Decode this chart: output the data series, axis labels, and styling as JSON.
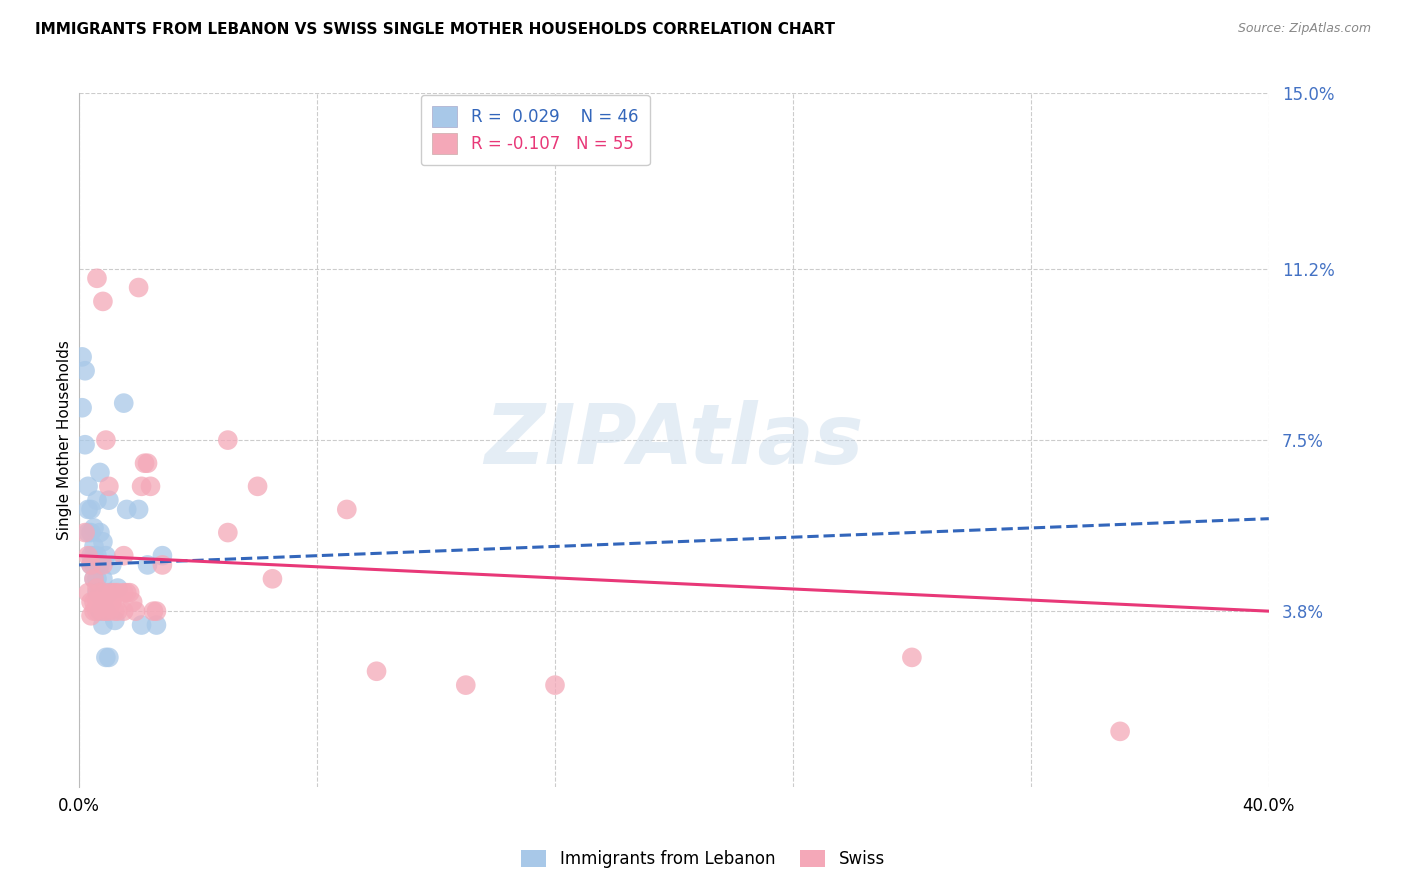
{
  "title": "IMMIGRANTS FROM LEBANON VS SWISS SINGLE MOTHER HOUSEHOLDS CORRELATION CHART",
  "source": "Source: ZipAtlas.com",
  "ylabel": "Single Mother Households",
  "xlim": [
    0.0,
    0.4
  ],
  "ylim": [
    0.0,
    0.15
  ],
  "xtick_positions": [
    0.0,
    0.08,
    0.16,
    0.24,
    0.32,
    0.4
  ],
  "xtick_labels": [
    "0.0%",
    "",
    "",
    "",
    "",
    "40.0%"
  ],
  "ytick_vals": [
    0.15,
    0.112,
    0.075,
    0.038
  ],
  "ytick_labels": [
    "15.0%",
    "11.2%",
    "7.5%",
    "3.8%"
  ],
  "grid_color": "#cccccc",
  "background_color": "#ffffff",
  "lebanon_color": "#a8c8e8",
  "swiss_color": "#f4a8b8",
  "lebanon_line_color": "#3366bb",
  "swiss_line_color": "#e83878",
  "R_lebanon": 0.029,
  "N_lebanon": 46,
  "R_swiss": -0.107,
  "N_swiss": 55,
  "watermark": "ZIPAtlas",
  "lebanon_trend": [
    0.048,
    0.058
  ],
  "swiss_trend": [
    0.05,
    0.038
  ],
  "legend_lebanon_label": "Immigrants from Lebanon",
  "legend_swiss_label": "Swiss",
  "lebanon_points": [
    [
      0.001,
      0.093
    ],
    [
      0.001,
      0.082
    ],
    [
      0.002,
      0.09
    ],
    [
      0.002,
      0.074
    ],
    [
      0.003,
      0.065
    ],
    [
      0.003,
      0.06
    ],
    [
      0.003,
      0.055
    ],
    [
      0.004,
      0.06
    ],
    [
      0.004,
      0.055
    ],
    [
      0.004,
      0.05
    ],
    [
      0.004,
      0.048
    ],
    [
      0.005,
      0.056
    ],
    [
      0.005,
      0.052
    ],
    [
      0.005,
      0.048
    ],
    [
      0.005,
      0.045
    ],
    [
      0.005,
      0.05
    ],
    [
      0.006,
      0.062
    ],
    [
      0.006,
      0.05
    ],
    [
      0.006,
      0.048
    ],
    [
      0.006,
      0.045
    ],
    [
      0.006,
      0.042
    ],
    [
      0.007,
      0.068
    ],
    [
      0.007,
      0.055
    ],
    [
      0.007,
      0.048
    ],
    [
      0.007,
      0.042
    ],
    [
      0.007,
      0.038
    ],
    [
      0.008,
      0.053
    ],
    [
      0.008,
      0.045
    ],
    [
      0.008,
      0.04
    ],
    [
      0.008,
      0.035
    ],
    [
      0.009,
      0.05
    ],
    [
      0.009,
      0.038
    ],
    [
      0.009,
      0.028
    ],
    [
      0.01,
      0.062
    ],
    [
      0.01,
      0.042
    ],
    [
      0.01,
      0.028
    ],
    [
      0.011,
      0.048
    ],
    [
      0.012,
      0.036
    ],
    [
      0.013,
      0.043
    ],
    [
      0.015,
      0.083
    ],
    [
      0.016,
      0.06
    ],
    [
      0.02,
      0.06
    ],
    [
      0.021,
      0.035
    ],
    [
      0.023,
      0.048
    ],
    [
      0.026,
      0.035
    ],
    [
      0.028,
      0.05
    ]
  ],
  "swiss_points": [
    [
      0.002,
      0.055
    ],
    [
      0.003,
      0.05
    ],
    [
      0.003,
      0.042
    ],
    [
      0.004,
      0.048
    ],
    [
      0.004,
      0.04
    ],
    [
      0.004,
      0.037
    ],
    [
      0.005,
      0.045
    ],
    [
      0.005,
      0.04
    ],
    [
      0.005,
      0.038
    ],
    [
      0.006,
      0.11
    ],
    [
      0.006,
      0.043
    ],
    [
      0.006,
      0.04
    ],
    [
      0.006,
      0.038
    ],
    [
      0.007,
      0.042
    ],
    [
      0.007,
      0.04
    ],
    [
      0.008,
      0.105
    ],
    [
      0.008,
      0.048
    ],
    [
      0.008,
      0.038
    ],
    [
      0.009,
      0.075
    ],
    [
      0.009,
      0.042
    ],
    [
      0.009,
      0.038
    ],
    [
      0.01,
      0.065
    ],
    [
      0.01,
      0.04
    ],
    [
      0.01,
      0.038
    ],
    [
      0.011,
      0.042
    ],
    [
      0.011,
      0.04
    ],
    [
      0.012,
      0.042
    ],
    [
      0.012,
      0.038
    ],
    [
      0.013,
      0.042
    ],
    [
      0.013,
      0.038
    ],
    [
      0.015,
      0.05
    ],
    [
      0.015,
      0.042
    ],
    [
      0.015,
      0.038
    ],
    [
      0.016,
      0.042
    ],
    [
      0.017,
      0.042
    ],
    [
      0.018,
      0.04
    ],
    [
      0.019,
      0.038
    ],
    [
      0.02,
      0.108
    ],
    [
      0.021,
      0.065
    ],
    [
      0.022,
      0.07
    ],
    [
      0.023,
      0.07
    ],
    [
      0.024,
      0.065
    ],
    [
      0.025,
      0.038
    ],
    [
      0.026,
      0.038
    ],
    [
      0.028,
      0.048
    ],
    [
      0.05,
      0.075
    ],
    [
      0.05,
      0.055
    ],
    [
      0.06,
      0.065
    ],
    [
      0.065,
      0.045
    ],
    [
      0.09,
      0.06
    ],
    [
      0.1,
      0.025
    ],
    [
      0.13,
      0.022
    ],
    [
      0.16,
      0.022
    ],
    [
      0.28,
      0.028
    ],
    [
      0.35,
      0.012
    ]
  ]
}
